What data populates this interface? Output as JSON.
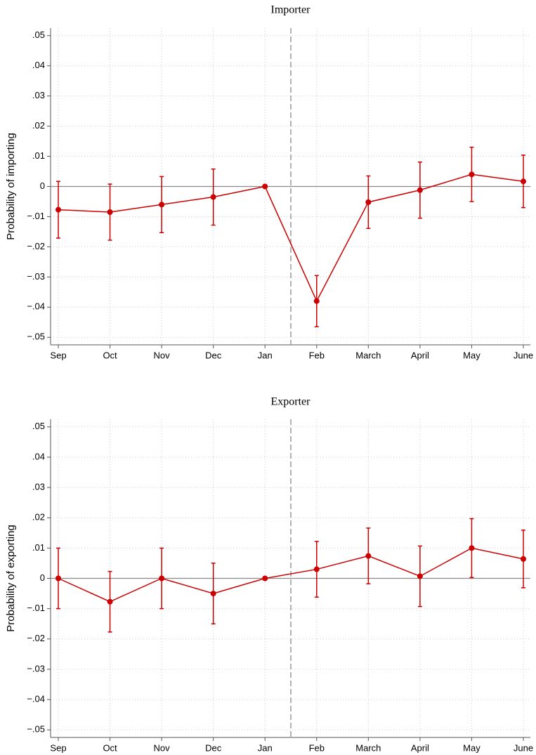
{
  "chart_data": [
    {
      "type": "line",
      "title": "Importer",
      "y_label": "Probability of importing",
      "categories": [
        "Sep",
        "Oct",
        "Nov",
        "Dec",
        "Jan",
        "Feb",
        "March",
        "April",
        "May",
        "June"
      ],
      "series": [
        {
          "color": "#cc0000",
          "values": [
            -0.0077,
            -0.0085,
            -0.006,
            -0.0035,
            0,
            -0.038,
            -0.0052,
            -0.0012,
            0.004,
            0.0017
          ],
          "errors": [
            0.0094,
            0.0093,
            0.0093,
            0.0093,
            0,
            0.0085,
            0.0087,
            0.0093,
            0.009,
            0.0087
          ]
        }
      ],
      "ylim": [
        -0.0525,
        0.0525
      ],
      "yticks": [
        {
          "value": 0.05,
          "label": ".05"
        },
        {
          "value": 0.04,
          "label": ".04"
        },
        {
          "value": 0.03,
          "label": ".03"
        },
        {
          "value": 0.02,
          "label": ".02"
        },
        {
          "value": 0.01,
          "label": ".01"
        },
        0,
        {
          "value": -0.01,
          "label": "−.01"
        },
        {
          "value": -0.02,
          "label": "−.02"
        },
        {
          "value": -0.03,
          "label": "−.03"
        },
        {
          "value": -0.04,
          "label": "−.04"
        },
        {
          "value": -0.05,
          "label": "−.05"
        }
      ],
      "grid": true,
      "hline": 0,
      "vline": 4.5
    },
    {
      "type": "line",
      "title": "Exporter",
      "y_label": "Probability of exporting",
      "categories": [
        "Sep",
        "Oct",
        "Nov",
        "Dec",
        "Jan",
        "Feb",
        "March",
        "April",
        "May",
        "June"
      ],
      "series": [
        {
          "color": "#cc0000",
          "values": [
            0,
            -0.0077,
            0,
            -0.005,
            0,
            0.003,
            0.0074,
            0.0007,
            0.01,
            0.0064
          ],
          "errors": [
            0.01,
            0.01,
            0.01,
            0.01,
            0,
            0.0092,
            0.0092,
            0.01,
            0.0097,
            0.0095
          ]
        }
      ],
      "ylim": [
        -0.0525,
        0.0525
      ],
      "yticks": [
        {
          "value": 0.05,
          "label": ".05"
        },
        {
          "value": 0.04,
          "label": ".04"
        },
        {
          "value": 0.03,
          "label": ".03"
        },
        {
          "value": 0.02,
          "label": ".02"
        },
        {
          "value": 0.01,
          "label": ".01"
        },
        0,
        {
          "value": -0.01,
          "label": "−.01"
        },
        {
          "value": -0.02,
          "label": "−.02"
        },
        {
          "value": -0.03,
          "label": "−.03"
        },
        {
          "value": -0.04,
          "label": "−.04"
        },
        {
          "value": -0.05,
          "label": "−.05"
        }
      ],
      "grid": true,
      "hline": 0,
      "vline": 4.5
    }
  ]
}
